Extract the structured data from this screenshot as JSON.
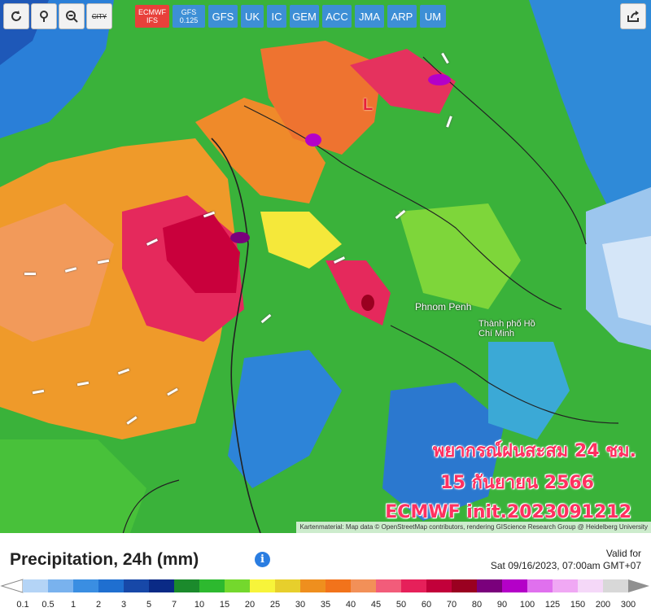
{
  "toolbar": {
    "icons": [
      "refresh-icon",
      "location-pin-icon",
      "zoom-out-icon"
    ],
    "city_label": "CITY",
    "models": [
      {
        "l1": "ECMWF",
        "l2": "IFS",
        "active": true
      },
      {
        "l1": "GFS",
        "l2": "0.125",
        "active": false
      },
      {
        "l1": "GFS",
        "l2": "",
        "active": false
      },
      {
        "l1": "UK",
        "l2": "",
        "active": false
      },
      {
        "l1": "IC",
        "l2": "",
        "active": false
      },
      {
        "l1": "GEM",
        "l2": "",
        "active": false
      },
      {
        "l1": "ACC",
        "l2": "",
        "active": false
      },
      {
        "l1": "JMA",
        "l2": "",
        "active": false
      },
      {
        "l1": "ARP",
        "l2": "",
        "active": false
      },
      {
        "l1": "UM",
        "l2": "",
        "active": false
      }
    ]
  },
  "map": {
    "low_marker": "L",
    "cities": [
      "Phnom Penh",
      "Thành phố Hồ Chí Minh"
    ],
    "overlay": {
      "line1": "พยากรณ์ฝนสะสม 24 ชม.",
      "line2": "15 กันยายน 2566",
      "line3": "ECMWF init.2023091212"
    },
    "attribution": "Kartenmaterial: Map data © OpenStreetMap contributors, rendering GIScience Research Group @ Heidelberg University"
  },
  "legend": {
    "title": "Precipitation, 24h (mm)",
    "valid_label": "Valid for",
    "valid_time": "Sat 09/16/2023, 07:00am GMT+07",
    "ticks": [
      "0.1",
      "0.5",
      "1",
      "2",
      "3",
      "5",
      "7",
      "10",
      "15",
      "20",
      "25",
      "30",
      "35",
      "40",
      "45",
      "50",
      "60",
      "70",
      "80",
      "90",
      "100",
      "125",
      "150",
      "200",
      "300"
    ],
    "colors": [
      "#b4d4f6",
      "#79b2ee",
      "#3a8ee2",
      "#1f6fd0",
      "#1748a8",
      "#0a2a86",
      "#1b8a2c",
      "#2db92f",
      "#74d82d",
      "#f7f43a",
      "#e7cf2c",
      "#ef8f1e",
      "#f2731b",
      "#f29058",
      "#f25c7a",
      "#e6205a",
      "#c2003a",
      "#9a0020",
      "#7a007c",
      "#b400c8",
      "#e070ee",
      "#f0a8f4",
      "#f5d8f8",
      "#d8d8d8"
    ]
  }
}
